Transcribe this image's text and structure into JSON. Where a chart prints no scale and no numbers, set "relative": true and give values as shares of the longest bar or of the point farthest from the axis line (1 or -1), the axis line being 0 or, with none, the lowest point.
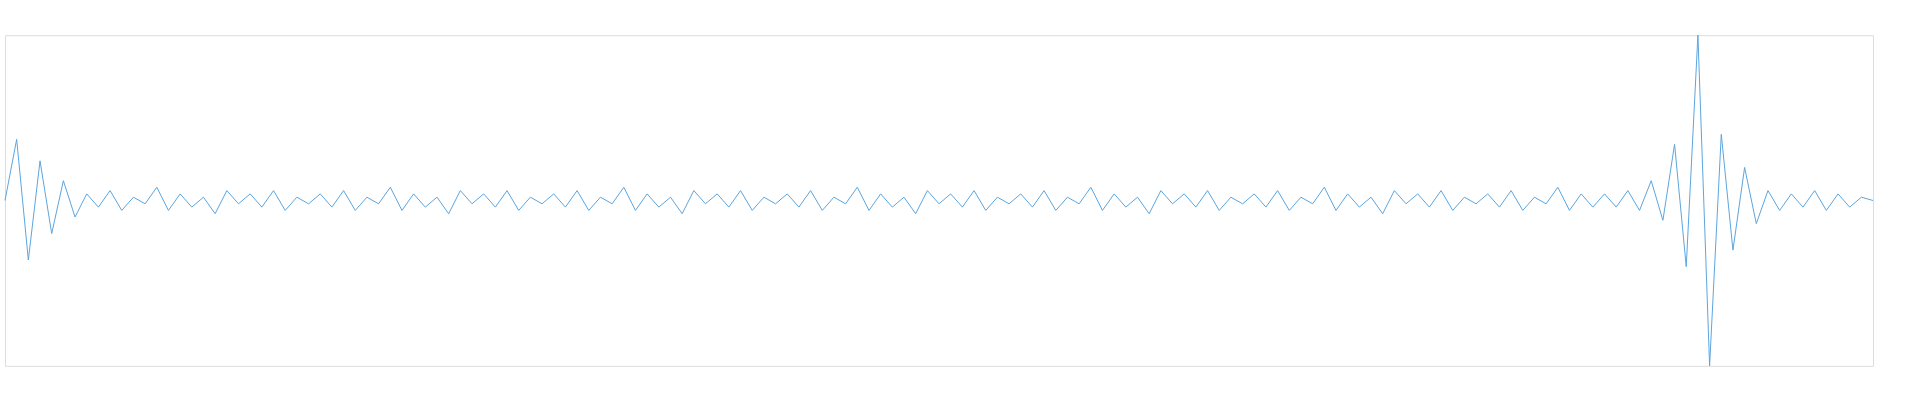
{
  "chart_data": {
    "type": "line",
    "relative": true,
    "color": "#5aa5df",
    "categories": [
      null,
      null,
      null,
      null,
      null,
      null,
      null,
      null,
      null,
      null,
      null,
      null,
      null,
      null,
      null,
      null,
      null,
      null,
      null,
      null,
      null,
      null,
      null,
      null,
      null,
      null,
      null,
      null,
      null,
      null,
      null,
      null,
      null,
      null,
      null,
      null,
      null,
      null,
      null,
      null,
      null,
      null,
      null,
      null,
      null,
      null,
      null,
      null,
      null,
      null,
      null,
      null,
      null,
      null,
      null,
      null,
      null,
      null,
      null,
      null,
      null,
      null,
      null,
      null,
      null,
      null,
      null,
      null,
      null,
      null,
      null,
      null,
      null,
      null,
      null,
      null,
      null,
      null,
      null,
      null,
      null,
      null,
      null,
      null,
      null,
      null,
      null,
      null,
      null,
      null,
      null,
      null,
      null,
      null,
      null,
      null,
      null,
      null,
      null,
      null,
      null,
      null,
      null,
      null,
      null,
      null,
      null,
      null,
      null,
      null,
      null,
      null,
      null,
      null,
      null,
      null,
      null,
      null,
      null,
      null,
      null,
      null,
      null,
      null,
      null,
      null,
      null,
      null,
      null,
      null,
      null,
      null,
      null,
      null,
      null,
      null,
      null,
      null,
      null,
      null,
      null,
      null,
      null,
      null,
      null,
      null,
      null,
      null,
      null,
      null,
      null,
      null,
      null,
      null,
      null,
      null,
      null,
      null,
      null,
      null,
      null
    ],
    "values": [
      0.5,
      0.685,
      0.32,
      0.62,
      0.4,
      0.56,
      0.45,
      0.52,
      0.48,
      0.53,
      0.47,
      0.51,
      0.49,
      0.54,
      0.47,
      0.52,
      0.48,
      0.51,
      0.46,
      0.53,
      0.49,
      0.52,
      0.48,
      0.53,
      0.47,
      0.51,
      0.49,
      0.52,
      0.48,
      0.53,
      0.47,
      0.51,
      0.49,
      0.54,
      0.47,
      0.52,
      0.48,
      0.51,
      0.46,
      0.53,
      0.49,
      0.52,
      0.48,
      0.53,
      0.47,
      0.51,
      0.49,
      0.52,
      0.48,
      0.53,
      0.47,
      0.51,
      0.49,
      0.54,
      0.47,
      0.52,
      0.48,
      0.51,
      0.46,
      0.53,
      0.49,
      0.52,
      0.48,
      0.53,
      0.47,
      0.51,
      0.49,
      0.52,
      0.48,
      0.53,
      0.47,
      0.51,
      0.49,
      0.54,
      0.47,
      0.52,
      0.48,
      0.51,
      0.46,
      0.53,
      0.49,
      0.52,
      0.48,
      0.53,
      0.47,
      0.51,
      0.49,
      0.52,
      0.48,
      0.53,
      0.47,
      0.51,
      0.49,
      0.54,
      0.47,
      0.52,
      0.48,
      0.51,
      0.46,
      0.53,
      0.49,
      0.52,
      0.48,
      0.53,
      0.47,
      0.51,
      0.49,
      0.52,
      0.48,
      0.53,
      0.47,
      0.51,
      0.49,
      0.54,
      0.47,
      0.52,
      0.48,
      0.51,
      0.46,
      0.53,
      0.49,
      0.52,
      0.48,
      0.53,
      0.47,
      0.51,
      0.49,
      0.52,
      0.48,
      0.53,
      0.47,
      0.51,
      0.49,
      0.54,
      0.47,
      0.52,
      0.48,
      0.52,
      0.48,
      0.53,
      0.47,
      0.56,
      0.44,
      0.67,
      0.3,
      1.0,
      0.0,
      0.7,
      0.35,
      0.6,
      0.43,
      0.53,
      0.47,
      0.52,
      0.48,
      0.53,
      0.47,
      0.52,
      0.48,
      0.51,
      0.5
    ]
  }
}
